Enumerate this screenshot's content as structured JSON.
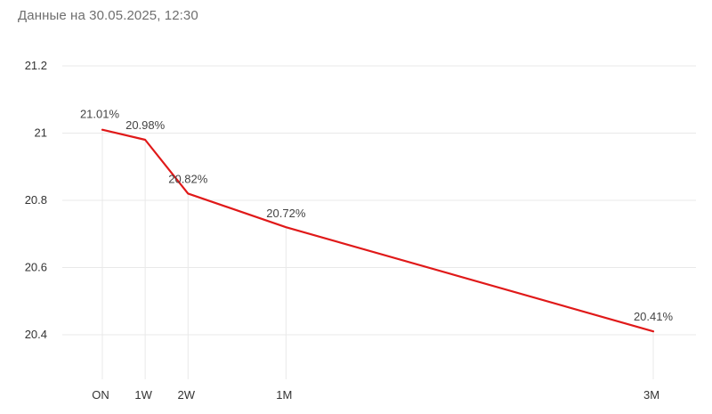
{
  "header": {
    "timestamp_text": "Данные на 30.05.2025, 12:30"
  },
  "colors": {
    "line": "#e01919",
    "grid": "#e9e9e9",
    "text": "#333333",
    "header_text": "#6f6f6f"
  },
  "chart_data": {
    "type": "line",
    "title": "",
    "xlabel": "",
    "ylabel": "",
    "categories": [
      "ON",
      "1W",
      "2W",
      "1M",
      "3M"
    ],
    "x_days": [
      0,
      7,
      14,
      30,
      90
    ],
    "values": [
      21.01,
      20.98,
      20.82,
      20.72,
      20.41
    ],
    "data_labels": [
      "21.01%",
      "20.98%",
      "20.82%",
      "20.72%",
      "20.41%"
    ],
    "y_ticks": [
      20.4,
      20.6,
      20.8,
      21,
      21.2
    ],
    "y_tick_labels": [
      "20.4",
      "20.6",
      "20.8",
      "21",
      "21.2"
    ],
    "ylim": [
      20.4,
      21.2
    ],
    "grid": true,
    "legend": "none"
  }
}
